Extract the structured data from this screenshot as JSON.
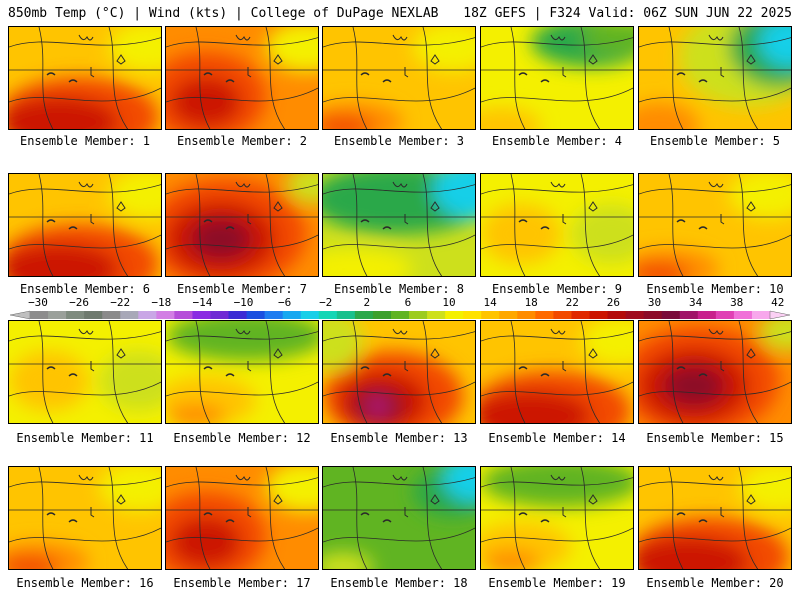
{
  "header": {
    "left": "850mb Temp (°C) | Wind (kts) | College of DuPage NEXLAB",
    "right": "18Z GEFS | F324 Valid: 06Z SUN JUN 22 2025"
  },
  "member_label_prefix": "Ensemble Member: ",
  "members": [
    {
      "n": "1",
      "fields": "hot-south"
    },
    {
      "n": "2",
      "fields": "hot-west"
    },
    {
      "n": "3",
      "fields": "warm"
    },
    {
      "n": "4",
      "fields": "mild-ne-cool"
    },
    {
      "n": "5",
      "fields": "cool-ne"
    },
    {
      "n": "6",
      "fields": "hot-south"
    },
    {
      "n": "7",
      "fields": "very-hot"
    },
    {
      "n": "8",
      "fields": "cool-north"
    },
    {
      "n": "9",
      "fields": "mild"
    },
    {
      "n": "10",
      "fields": "warm"
    },
    {
      "n": "11",
      "fields": "mild"
    },
    {
      "n": "12",
      "fields": "mild-north-cool"
    },
    {
      "n": "13",
      "fields": "very-hot-center"
    },
    {
      "n": "14",
      "fields": "hot-south"
    },
    {
      "n": "15",
      "fields": "very-hot"
    },
    {
      "n": "16",
      "fields": "warm"
    },
    {
      "n": "17",
      "fields": "hot-west"
    },
    {
      "n": "18",
      "fields": "cool"
    },
    {
      "n": "19",
      "fields": "mild-north-cool"
    },
    {
      "n": "20",
      "fields": "hot-south"
    }
  ],
  "colorbar": {
    "tick_labels": [
      "−30",
      "−26",
      "−22",
      "−18",
      "−14",
      "−10",
      "−6",
      "−2",
      "2",
      "6",
      "10",
      "14",
      "18",
      "22",
      "26",
      "30",
      "34",
      "38",
      "42"
    ],
    "colors": [
      "#8c8c8c",
      "#9aa09a",
      "#7e8b7e",
      "#6e7a6e",
      "#8a8a8a",
      "#a8a8b8",
      "#c9a6e6",
      "#d27ee4",
      "#b54ed9",
      "#8a2be2",
      "#6f2ad4",
      "#3b2bd4",
      "#1a4fe0",
      "#1e7cf0",
      "#18a8f0",
      "#19cfe8",
      "#14d6b5",
      "#18c08c",
      "#2aa84a",
      "#3ca02c",
      "#60b422",
      "#9ccc1f",
      "#cde01c",
      "#f4f000",
      "#ffe200",
      "#ffc400",
      "#ffa800",
      "#ff8c00",
      "#ff6a00",
      "#f24a00",
      "#e02800",
      "#cc1400",
      "#b40a0a",
      "#a00a1e",
      "#8c0a28",
      "#7a0a3a",
      "#a01468",
      "#c8208c",
      "#e040b4",
      "#f070d8",
      "#f8a8ec"
    ]
  },
  "palette": {
    "cool-teal": "#19cfe8",
    "cool-green": "#2aa84a",
    "green": "#60b422",
    "yellow-green": "#cde01c",
    "yellow": "#f4f000",
    "gold": "#ffc400",
    "orange": "#ff8c00",
    "red-orange": "#f24a00",
    "red": "#cc1400",
    "dark-red": "#8c0a28",
    "magenta": "#c8208c"
  }
}
